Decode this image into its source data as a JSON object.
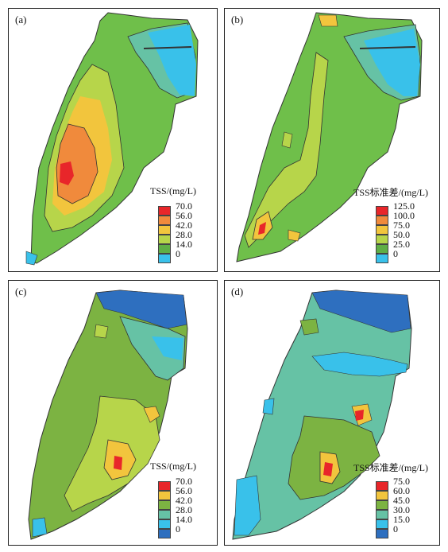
{
  "panels": [
    {
      "label": "(a)",
      "legend_title": "TSS/(mg/L)",
      "legend_values": [
        "70.0",
        "56.0",
        "42.0",
        "28.0",
        "14.0",
        "0"
      ],
      "legend_colors": [
        "#e8262a",
        "#f08a3c",
        "#f2c53d",
        "#b7d54a",
        "#5fae45",
        "#39c1ea"
      ]
    },
    {
      "label": "(b)",
      "legend_title": "TSS标准差/(mg/L)",
      "legend_values": [
        "125.0",
        "100.0",
        "75.0",
        "50.0",
        "25.0",
        "0"
      ],
      "legend_colors": [
        "#e8262a",
        "#f08a3c",
        "#f2c53d",
        "#b7d54a",
        "#5fae45",
        "#39c1ea"
      ]
    },
    {
      "label": "(c)",
      "legend_title": "TSS/(mg/L)",
      "legend_values": [
        "70.0",
        "56.0",
        "42.0",
        "28.0",
        "14.0",
        "0"
      ],
      "legend_colors": [
        "#e8262a",
        "#f2c53d",
        "#7cb342",
        "#66c2a5",
        "#39c1ea",
        "#2e6fbf"
      ]
    },
    {
      "label": "(d)",
      "legend_title": "TSS标准差/(mg/L)",
      "legend_values": [
        "75.0",
        "60.0",
        "45.0",
        "30.0",
        "15.0",
        "0"
      ],
      "legend_colors": [
        "#e8262a",
        "#f2c53d",
        "#7cb342",
        "#66c2a5",
        "#39c1ea",
        "#2e6fbf"
      ]
    }
  ]
}
